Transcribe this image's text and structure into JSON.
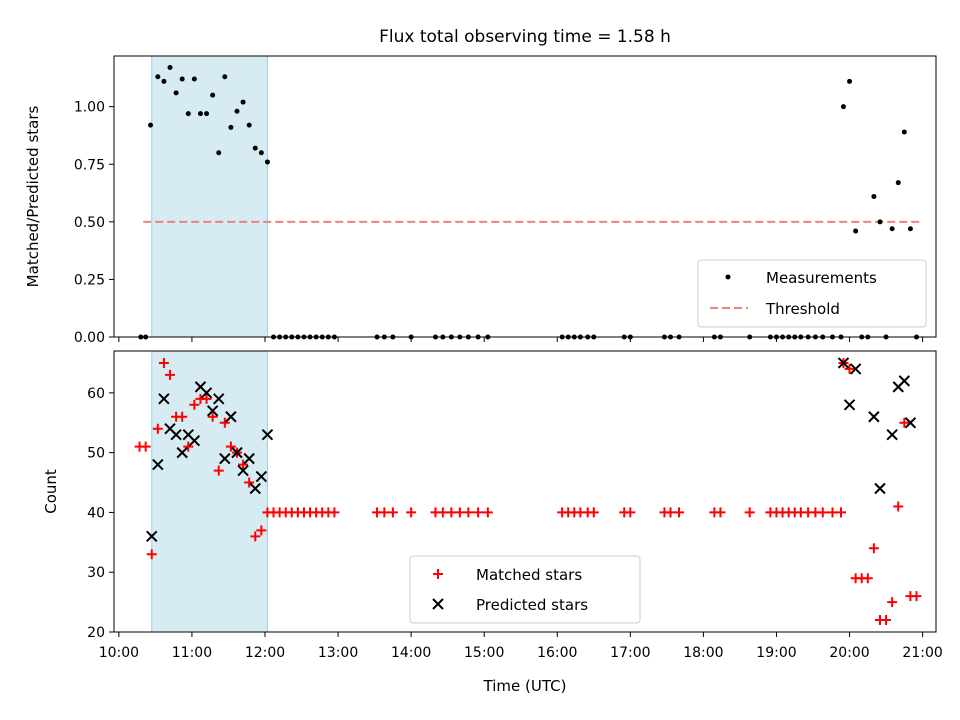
{
  "title": "Flux total observing time = 1.58 h",
  "chart_data": [
    {
      "type": "scatter",
      "ylabel": "Matched/Predicted stars",
      "ylim": [
        0,
        1.22
      ],
      "yticks": [
        "0.00",
        "0.25",
        "0.50",
        "0.75",
        "1.00"
      ],
      "ytick_values": [
        0,
        0.25,
        0.5,
        0.75,
        1.0
      ],
      "grid": false,
      "legend_placement": "lower-right",
      "highlight_span": [
        "10:27",
        "12:02"
      ],
      "threshold": {
        "name": "Threshold",
        "value": 0.5,
        "from": "10:20",
        "to": "20:58",
        "color": "#f08080"
      },
      "series": [
        {
          "name": "Measurements",
          "color": "#000000",
          "points": [
            [
              "10:18",
              0
            ],
            [
              "10:22",
              0
            ],
            [
              "10:26",
              0.92
            ],
            [
              "10:32",
              1.13
            ],
            [
              "10:37",
              1.11
            ],
            [
              "10:42",
              1.17
            ],
            [
              "10:47",
              1.06
            ],
            [
              "10:52",
              1.12
            ],
            [
              "10:57",
              0.97
            ],
            [
              "11:02",
              1.12
            ],
            [
              "11:07",
              0.97
            ],
            [
              "11:12",
              0.97
            ],
            [
              "11:17",
              1.05
            ],
            [
              "11:22",
              0.8
            ],
            [
              "11:27",
              1.13
            ],
            [
              "11:32",
              0.91
            ],
            [
              "11:37",
              0.98
            ],
            [
              "11:42",
              1.02
            ],
            [
              "11:47",
              0.92
            ],
            [
              "11:52",
              0.82
            ],
            [
              "11:57",
              0.8
            ],
            [
              "12:02",
              0.76
            ],
            [
              "12:07",
              0
            ],
            [
              "12:12",
              0
            ],
            [
              "12:17",
              0
            ],
            [
              "12:22",
              0
            ],
            [
              "12:27",
              0
            ],
            [
              "12:32",
              0
            ],
            [
              "12:37",
              0
            ],
            [
              "12:42",
              0
            ],
            [
              "12:47",
              0
            ],
            [
              "12:52",
              0
            ],
            [
              "12:57",
              0
            ],
            [
              "13:32",
              0
            ],
            [
              "13:38",
              0
            ],
            [
              "13:45",
              0
            ],
            [
              "14:00",
              0
            ],
            [
              "14:20",
              0
            ],
            [
              "14:26",
              0
            ],
            [
              "14:33",
              0
            ],
            [
              "14:40",
              0
            ],
            [
              "14:47",
              0
            ],
            [
              "14:55",
              0
            ],
            [
              "15:03",
              0
            ],
            [
              "16:04",
              0
            ],
            [
              "16:09",
              0
            ],
            [
              "16:14",
              0
            ],
            [
              "16:19",
              0
            ],
            [
              "16:25",
              0
            ],
            [
              "16:30",
              0
            ],
            [
              "16:55",
              0
            ],
            [
              "17:00",
              0
            ],
            [
              "17:28",
              0
            ],
            [
              "17:33",
              0
            ],
            [
              "17:40",
              0
            ],
            [
              "18:09",
              0
            ],
            [
              "18:14",
              0
            ],
            [
              "18:38",
              0
            ],
            [
              "18:55",
              0
            ],
            [
              "19:00",
              0
            ],
            [
              "19:05",
              0
            ],
            [
              "19:10",
              0
            ],
            [
              "19:15",
              0
            ],
            [
              "19:20",
              0
            ],
            [
              "19:26",
              0
            ],
            [
              "19:32",
              0
            ],
            [
              "19:38",
              0
            ],
            [
              "19:46",
              0
            ],
            [
              "19:53",
              0
            ],
            [
              "19:55",
              1.0
            ],
            [
              "20:00",
              1.11
            ],
            [
              "20:05",
              0.46
            ],
            [
              "20:10",
              0
            ],
            [
              "20:15",
              0
            ],
            [
              "20:20",
              0.61
            ],
            [
              "20:25",
              0.5
            ],
            [
              "20:30",
              0
            ],
            [
              "20:35",
              0.47
            ],
            [
              "20:40",
              0.67
            ],
            [
              "20:45",
              0.89
            ],
            [
              "20:50",
              0.47
            ],
            [
              "20:55",
              0
            ]
          ]
        }
      ]
    },
    {
      "type": "scatter",
      "xlabel": "Time (UTC)",
      "ylabel": "Count",
      "ylim": [
        20,
        67
      ],
      "yticks": [
        "20",
        "30",
        "40",
        "50",
        "60"
      ],
      "ytick_values": [
        20,
        30,
        40,
        50,
        60
      ],
      "xlim": [
        "9:56",
        "21:11"
      ],
      "xticks": [
        "10:00",
        "11:00",
        "12:00",
        "13:00",
        "14:00",
        "15:00",
        "16:00",
        "17:00",
        "18:00",
        "19:00",
        "20:00",
        "21:00"
      ],
      "grid": false,
      "legend_placement": "lower-center",
      "highlight_span": [
        "10:27",
        "12:02"
      ],
      "series": [
        {
          "name": "Matched stars",
          "marker": "plus",
          "color": "#ff0000",
          "points": [
            [
              "10:17",
              51
            ],
            [
              "10:22",
              51
            ],
            [
              "10:27",
              33
            ],
            [
              "10:32",
              54
            ],
            [
              "10:37",
              65
            ],
            [
              "10:42",
              63
            ],
            [
              "10:47",
              56
            ],
            [
              "10:52",
              56
            ],
            [
              "10:57",
              51
            ],
            [
              "11:02",
              58
            ],
            [
              "11:07",
              59
            ],
            [
              "11:12",
              59
            ],
            [
              "11:17",
              56
            ],
            [
              "11:22",
              47
            ],
            [
              "11:27",
              55
            ],
            [
              "11:32",
              51
            ],
            [
              "11:37",
              50
            ],
            [
              "11:42",
              48
            ],
            [
              "11:47",
              45
            ],
            [
              "11:52",
              36
            ],
            [
              "11:57",
              37
            ],
            [
              "12:02",
              40
            ],
            [
              "12:07",
              40
            ],
            [
              "12:12",
              40
            ],
            [
              "12:17",
              40
            ],
            [
              "12:22",
              40
            ],
            [
              "12:27",
              40
            ],
            [
              "12:32",
              40
            ],
            [
              "12:37",
              40
            ],
            [
              "12:42",
              40
            ],
            [
              "12:47",
              40
            ],
            [
              "12:52",
              40
            ],
            [
              "12:57",
              40
            ],
            [
              "13:32",
              40
            ],
            [
              "13:38",
              40
            ],
            [
              "13:45",
              40
            ],
            [
              "14:00",
              40
            ],
            [
              "14:20",
              40
            ],
            [
              "14:26",
              40
            ],
            [
              "14:33",
              40
            ],
            [
              "14:40",
              40
            ],
            [
              "14:47",
              40
            ],
            [
              "14:55",
              40
            ],
            [
              "15:03",
              40
            ],
            [
              "16:04",
              40
            ],
            [
              "16:09",
              40
            ],
            [
              "16:14",
              40
            ],
            [
              "16:19",
              40
            ],
            [
              "16:25",
              40
            ],
            [
              "16:30",
              40
            ],
            [
              "16:55",
              40
            ],
            [
              "17:00",
              40
            ],
            [
              "17:28",
              40
            ],
            [
              "17:33",
              40
            ],
            [
              "17:40",
              40
            ],
            [
              "18:09",
              40
            ],
            [
              "18:14",
              40
            ],
            [
              "18:38",
              40
            ],
            [
              "18:55",
              40
            ],
            [
              "19:00",
              40
            ],
            [
              "19:05",
              40
            ],
            [
              "19:10",
              40
            ],
            [
              "19:15",
              40
            ],
            [
              "19:20",
              40
            ],
            [
              "19:26",
              40
            ],
            [
              "19:32",
              40
            ],
            [
              "19:38",
              40
            ],
            [
              "19:46",
              40
            ],
            [
              "19:53",
              40
            ],
            [
              "19:55",
              65
            ],
            [
              "20:00",
              64
            ],
            [
              "20:05",
              29
            ],
            [
              "20:10",
              29
            ],
            [
              "20:15",
              29
            ],
            [
              "20:20",
              34
            ],
            [
              "20:25",
              22
            ],
            [
              "20:30",
              22
            ],
            [
              "20:35",
              25
            ],
            [
              "20:40",
              41
            ],
            [
              "20:45",
              55
            ],
            [
              "20:50",
              26
            ],
            [
              "20:55",
              26
            ]
          ]
        },
        {
          "name": "Predicted stars",
          "marker": "x",
          "color": "#000000",
          "points": [
            [
              "10:27",
              36
            ],
            [
              "10:32",
              48
            ],
            [
              "10:37",
              59
            ],
            [
              "10:42",
              54
            ],
            [
              "10:47",
              53
            ],
            [
              "10:52",
              50
            ],
            [
              "10:57",
              53
            ],
            [
              "11:02",
              52
            ],
            [
              "11:07",
              61
            ],
            [
              "11:12",
              60
            ],
            [
              "11:17",
              57
            ],
            [
              "11:22",
              59
            ],
            [
              "11:27",
              49
            ],
            [
              "11:32",
              56
            ],
            [
              "11:37",
              50
            ],
            [
              "11:42",
              47
            ],
            [
              "11:47",
              49
            ],
            [
              "11:52",
              44
            ],
            [
              "11:57",
              46
            ],
            [
              "12:02",
              53
            ],
            [
              "19:55",
              65
            ],
            [
              "20:00",
              58
            ],
            [
              "20:05",
              64
            ],
            [
              "20:20",
              56
            ],
            [
              "20:25",
              44
            ],
            [
              "20:35",
              53
            ],
            [
              "20:40",
              61
            ],
            [
              "20:45",
              62
            ],
            [
              "20:50",
              55
            ]
          ]
        }
      ]
    }
  ]
}
